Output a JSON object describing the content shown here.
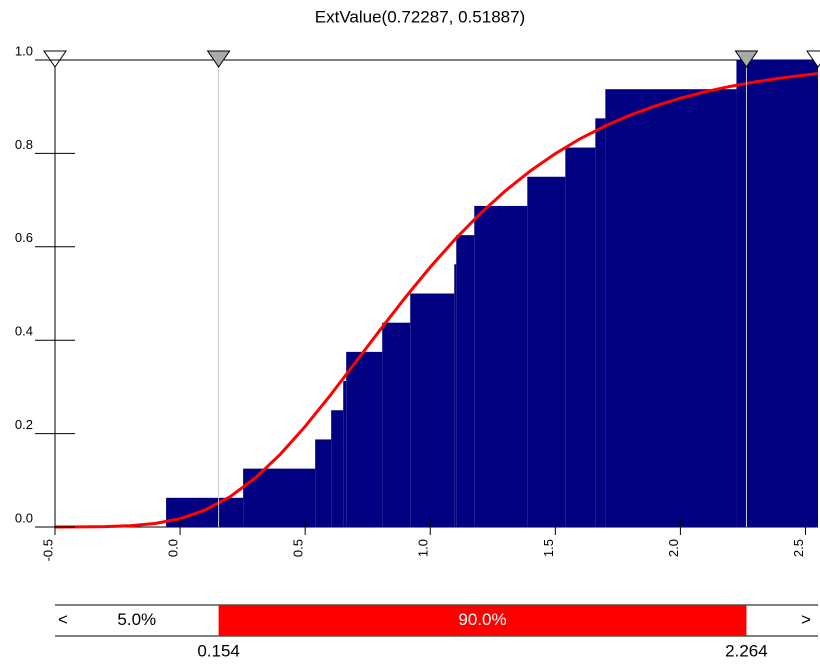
{
  "chart_data": {
    "type": "fit_cdf",
    "title": "ExtValue(0.72287, 0.51887)",
    "empirical": {
      "color": "#000080",
      "x": [
        -0.056,
        0.252,
        0.54,
        0.604,
        0.652,
        0.664,
        0.808,
        0.92,
        1.096,
        1.104,
        1.176,
        1.388,
        1.54,
        1.66,
        1.7,
        2.224
      ],
      "values": [
        0.0625,
        0.125,
        0.1875,
        0.25,
        0.3125,
        0.375,
        0.4375,
        0.5,
        0.5625,
        0.625,
        0.6875,
        0.75,
        0.8125,
        0.875,
        0.9375,
        1.0
      ]
    },
    "fit": {
      "color": "#ff0000",
      "x": [
        -0.5,
        -0.4,
        -0.3,
        -0.2,
        -0.1,
        0.0,
        0.1,
        0.2,
        0.3,
        0.4,
        0.5,
        0.6,
        0.7,
        0.8,
        0.9,
        1.0,
        1.1,
        1.2,
        1.3,
        1.4,
        1.5,
        1.6,
        1.7,
        1.8,
        1.9,
        2.0,
        2.1,
        2.2,
        2.3,
        2.4,
        2.5,
        2.55
      ],
      "values": [
        0.0,
        0.0002,
        0.0008,
        0.0027,
        0.0076,
        0.0178,
        0.0362,
        0.0648,
        0.1047,
        0.1554,
        0.2153,
        0.2817,
        0.3517,
        0.4224,
        0.4912,
        0.5564,
        0.6167,
        0.6712,
        0.7198,
        0.7625,
        0.7995,
        0.8316,
        0.8589,
        0.8821,
        0.9017,
        0.9182,
        0.932,
        0.9436,
        0.9532,
        0.9613,
        0.968,
        0.9709
      ]
    },
    "xlim": [
      -0.5,
      2.55
    ],
    "ylim": [
      0,
      1
    ],
    "xticks": [
      -0.5,
      {
        "value": 0,
        "label": "0.0"
      },
      0.5,
      {
        "value": 1,
        "label": "1.0"
      },
      1.5,
      {
        "value": 2,
        "label": "2.0"
      },
      2.5
    ],
    "yticks": [
      {
        "value": 0,
        "label": "0.0"
      },
      0.2,
      0.4,
      0.6,
      0.8,
      {
        "value": 1,
        "label": "1.0"
      }
    ],
    "delimiters": [
      0.154,
      2.264
    ],
    "probabilities": [
      {
        "value": 5,
        "label": "5.0%"
      },
      {
        "value": 90,
        "label": "90.0%"
      }
    ],
    "arrows": [
      "<",
      ">"
    ]
  }
}
